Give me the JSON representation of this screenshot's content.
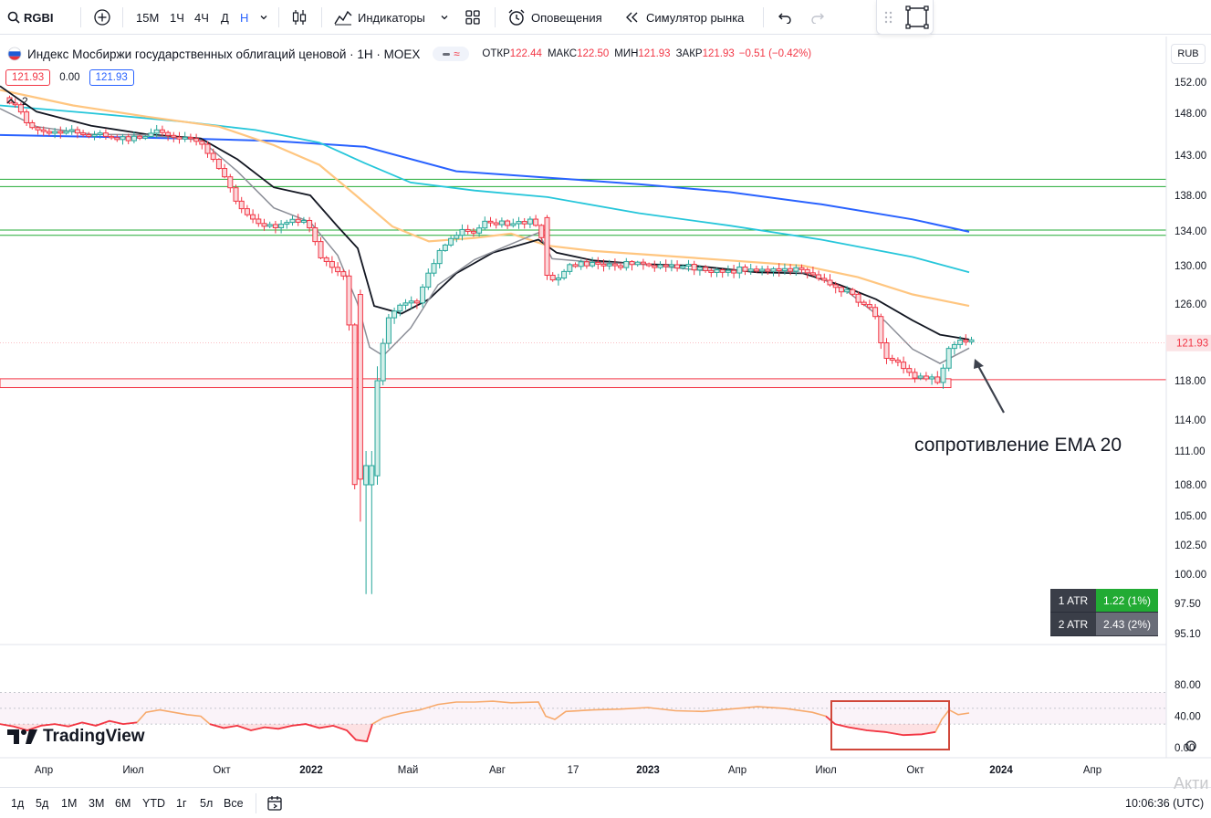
{
  "toolbar": {
    "symbol": "RGBI",
    "timeframes": [
      "15М",
      "1Ч",
      "4Ч",
      "Д",
      "Н"
    ],
    "active_timeframe": "Н",
    "indicators_label": "Индикаторы",
    "alerts_label": "Оповещения",
    "replay_label": "Симулятор рынка"
  },
  "legend": {
    "title": "Индекс Мосбиржи государственных облигаций ценовой · 1Н · MOEX",
    "open_label": "ОТКР",
    "open_value": "122.44",
    "high_label": "МАКС",
    "high_value": "122.50",
    "low_label": "МИН",
    "low_value": "121.93",
    "close_label": "ЗАКР",
    "close_value": "121.93",
    "change": "−0.51 (−0.42%)",
    "sell_price": "121.93",
    "spread": "0.00",
    "buy_price": "121.93",
    "indicators_count": "2"
  },
  "currency": "RUB",
  "colors": {
    "up": "#26a69a",
    "down": "#f23645",
    "ema20": "#131722",
    "ema10": "#8c8f98",
    "ema50": "#ffc680",
    "ema100": "#26c6da",
    "ema200": "#2962ff",
    "rsi": "#f7a96b",
    "atr1_bg": "#22ab34",
    "atr2_bg": "#6a6d78"
  },
  "chart_data": {
    "type": "candlestick",
    "y_ticks": [
      "152.00",
      "148.00",
      "143.00",
      "138.00",
      "134.00",
      "130.00",
      "126.00",
      "121.93",
      "118.00",
      "114.00",
      "111.00",
      "108.00",
      "105.00",
      "102.50",
      "100.00",
      "97.50",
      "95.10"
    ],
    "y_range": [
      95.1,
      152.0
    ],
    "x_ticks": [
      "Апр",
      "Июл",
      "Окт",
      "2022",
      "Май",
      "Авг",
      "17",
      "2023",
      "Апр",
      "Июл",
      "Окт",
      "2024",
      "Апр"
    ],
    "last_price": "121.93",
    "resistance_levels": [
      140.0,
      139.1,
      134.1,
      133.5
    ],
    "support_zone": [
      117.3,
      118.2
    ],
    "rsi_ticks": [
      "80.00",
      "40.00",
      "0.00"
    ],
    "rsi_range": [
      0,
      80
    ],
    "rsi_bands": [
      70,
      50,
      30
    ]
  },
  "atr": [
    {
      "name": "1 ATR",
      "value": "1.22 (1%)"
    },
    {
      "name": "2 ATR",
      "value": "2.43 (2%)"
    }
  ],
  "annotation": "сопротивление EMA 20",
  "logo": "TradingView",
  "bottombar": {
    "ranges": [
      "1д",
      "5д",
      "1М",
      "3М",
      "6М",
      "YTD",
      "1г",
      "5л",
      "Все"
    ],
    "clock": "10:06:36 (UTC)"
  },
  "watermark": "Акти"
}
